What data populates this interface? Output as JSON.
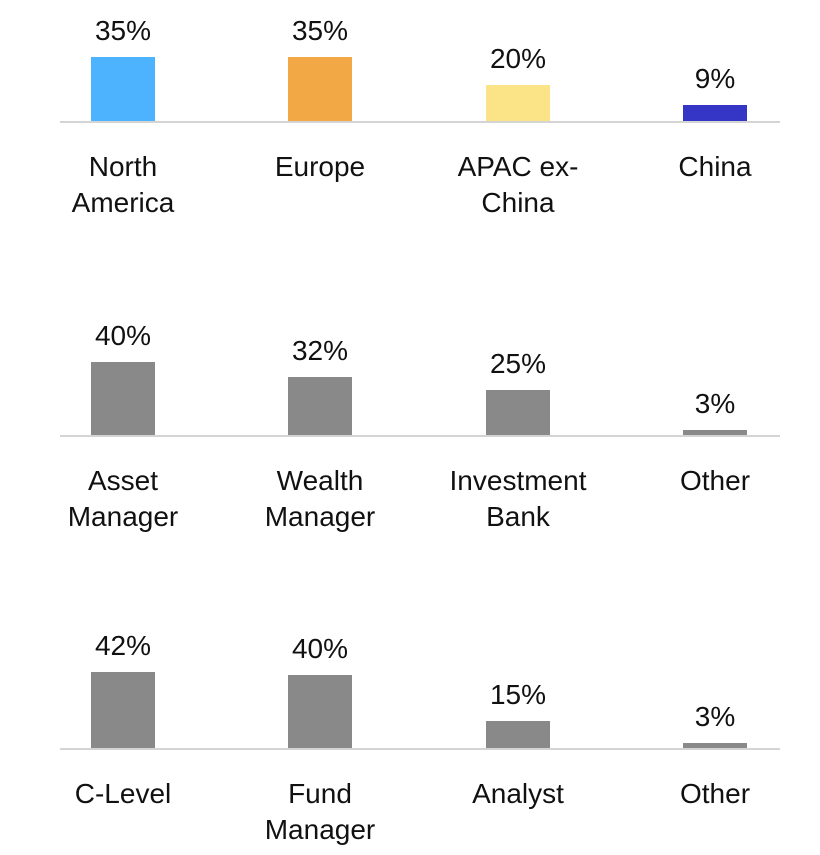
{
  "chart_data": [
    {
      "type": "bar",
      "categories": [
        "North America",
        "Europe",
        "APAC ex-China",
        "China"
      ],
      "values": [
        35,
        35,
        20,
        9
      ],
      "value_labels": [
        "35%",
        "35%",
        "20%",
        "9%"
      ],
      "colors": [
        "#4db3ff",
        "#f2a945",
        "#fbe388",
        "#3535c6"
      ]
    },
    {
      "type": "bar",
      "categories": [
        "Asset Manager",
        "Wealth Manager",
        "Investment Bank",
        "Other"
      ],
      "values": [
        40,
        32,
        25,
        3
      ],
      "value_labels": [
        "40%",
        "32%",
        "25%",
        "3%"
      ],
      "color": "#898989"
    },
    {
      "type": "bar",
      "categories": [
        "C-Level",
        "Fund Manager",
        "Analyst",
        "Other"
      ],
      "values": [
        42,
        40,
        15,
        3
      ],
      "value_labels": [
        "42%",
        "40%",
        "15%",
        "3%"
      ],
      "color": "#898989"
    }
  ]
}
